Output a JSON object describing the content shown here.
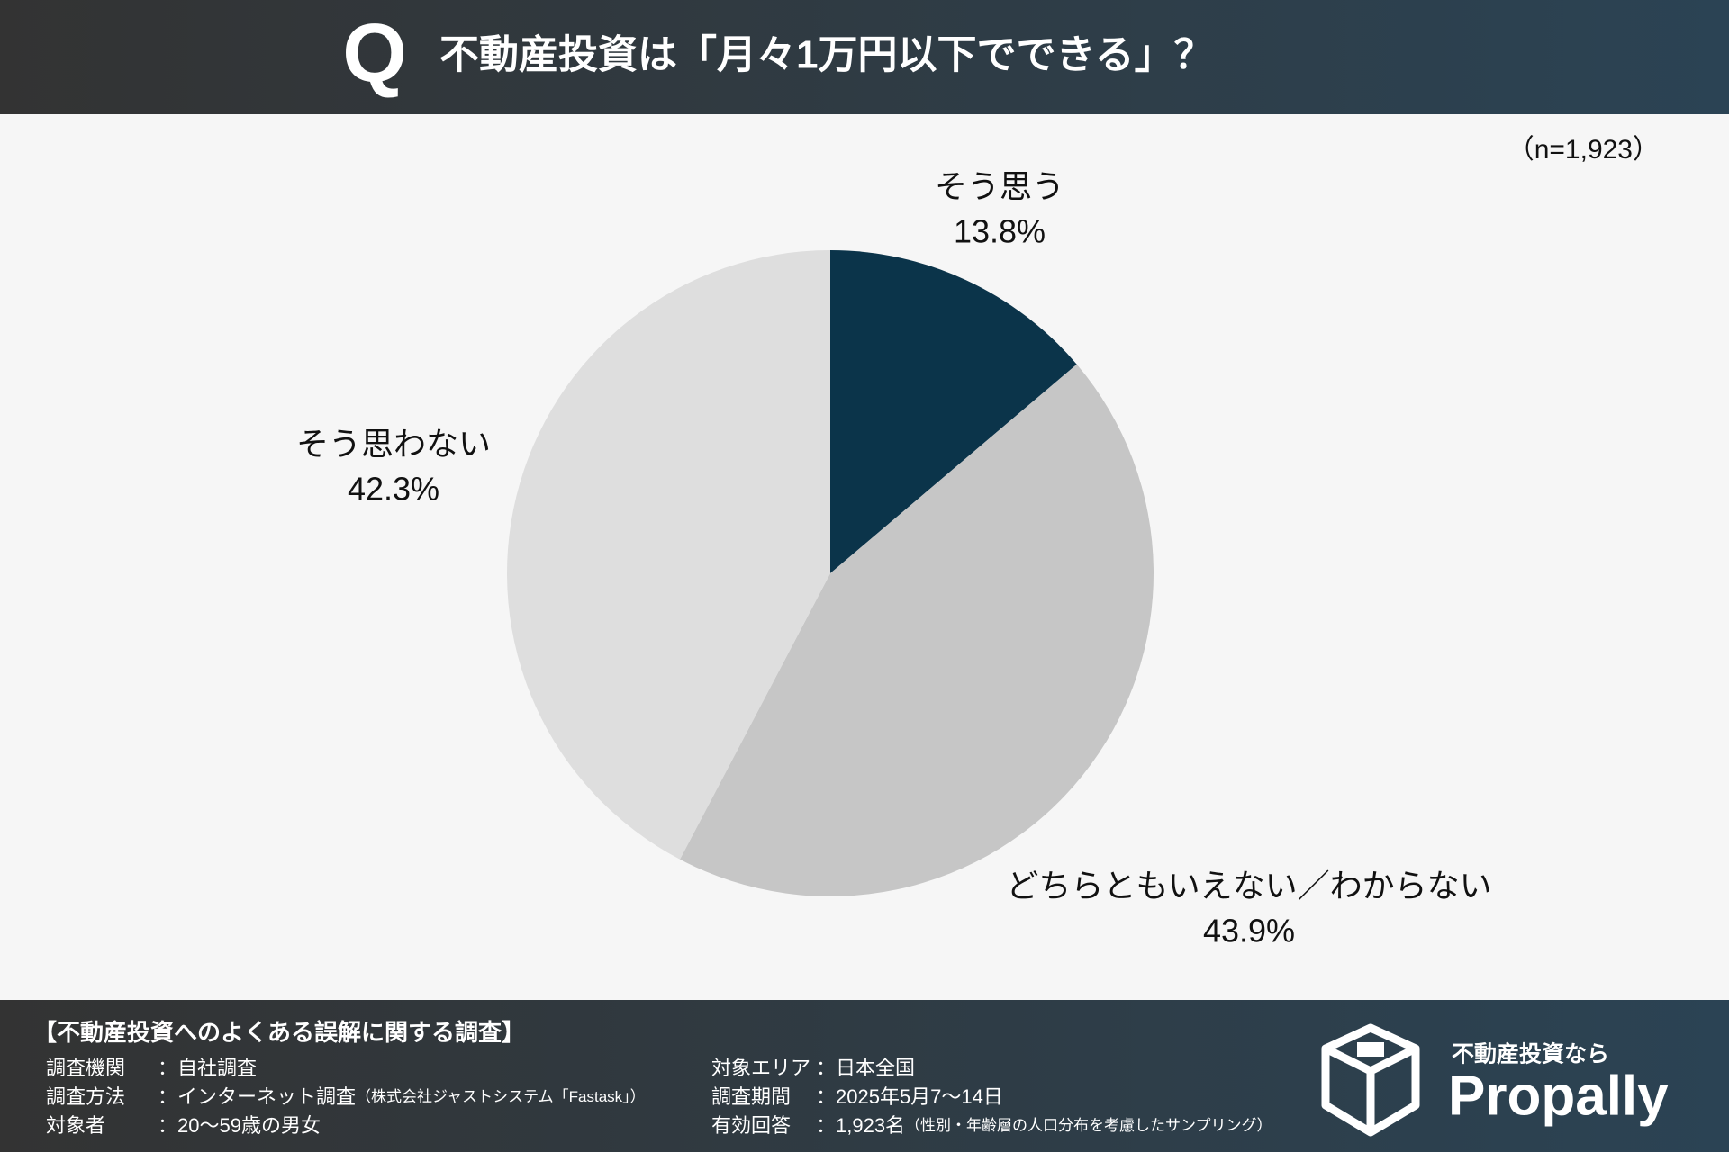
{
  "header": {
    "mark": "Q",
    "question": "不動産投資は「月々1万円以下でできる」？"
  },
  "chart_data": {
    "type": "pie",
    "note": "（n=1,923）",
    "categories": [
      "そう思う",
      "どちらともいえない／わからない",
      "そう思わない"
    ],
    "values": [
      13.8,
      43.9,
      42.3
    ],
    "value_labels": [
      "13.8%",
      "43.9%",
      "42.3%"
    ],
    "colors": [
      "#0b344a",
      "#c6c6c6",
      "#dedede"
    ]
  },
  "footer": {
    "title": "【不動産投資へのよくある誤解に関する調査】",
    "left": [
      {
        "label": "調査機関",
        "value": "：自社調査"
      },
      {
        "label": "調査方法",
        "value": "：インターネット調査",
        "note": "（株式会社ジャストシステム「Fastask」）"
      },
      {
        "label": "対象者",
        "value": "：20〜59歳の男女"
      }
    ],
    "right": [
      {
        "label": "対象エリア",
        "value": "：日本全国"
      },
      {
        "label": "調査期間",
        "value": "：2025年5月7〜14日"
      },
      {
        "label": "有効回答",
        "value": "：1,923名",
        "note": "（性別・年齢層の人口分布を考慮したサンプリング）"
      }
    ],
    "logo_tagline": "不動産投資なら",
    "logo_name": "Propally"
  }
}
